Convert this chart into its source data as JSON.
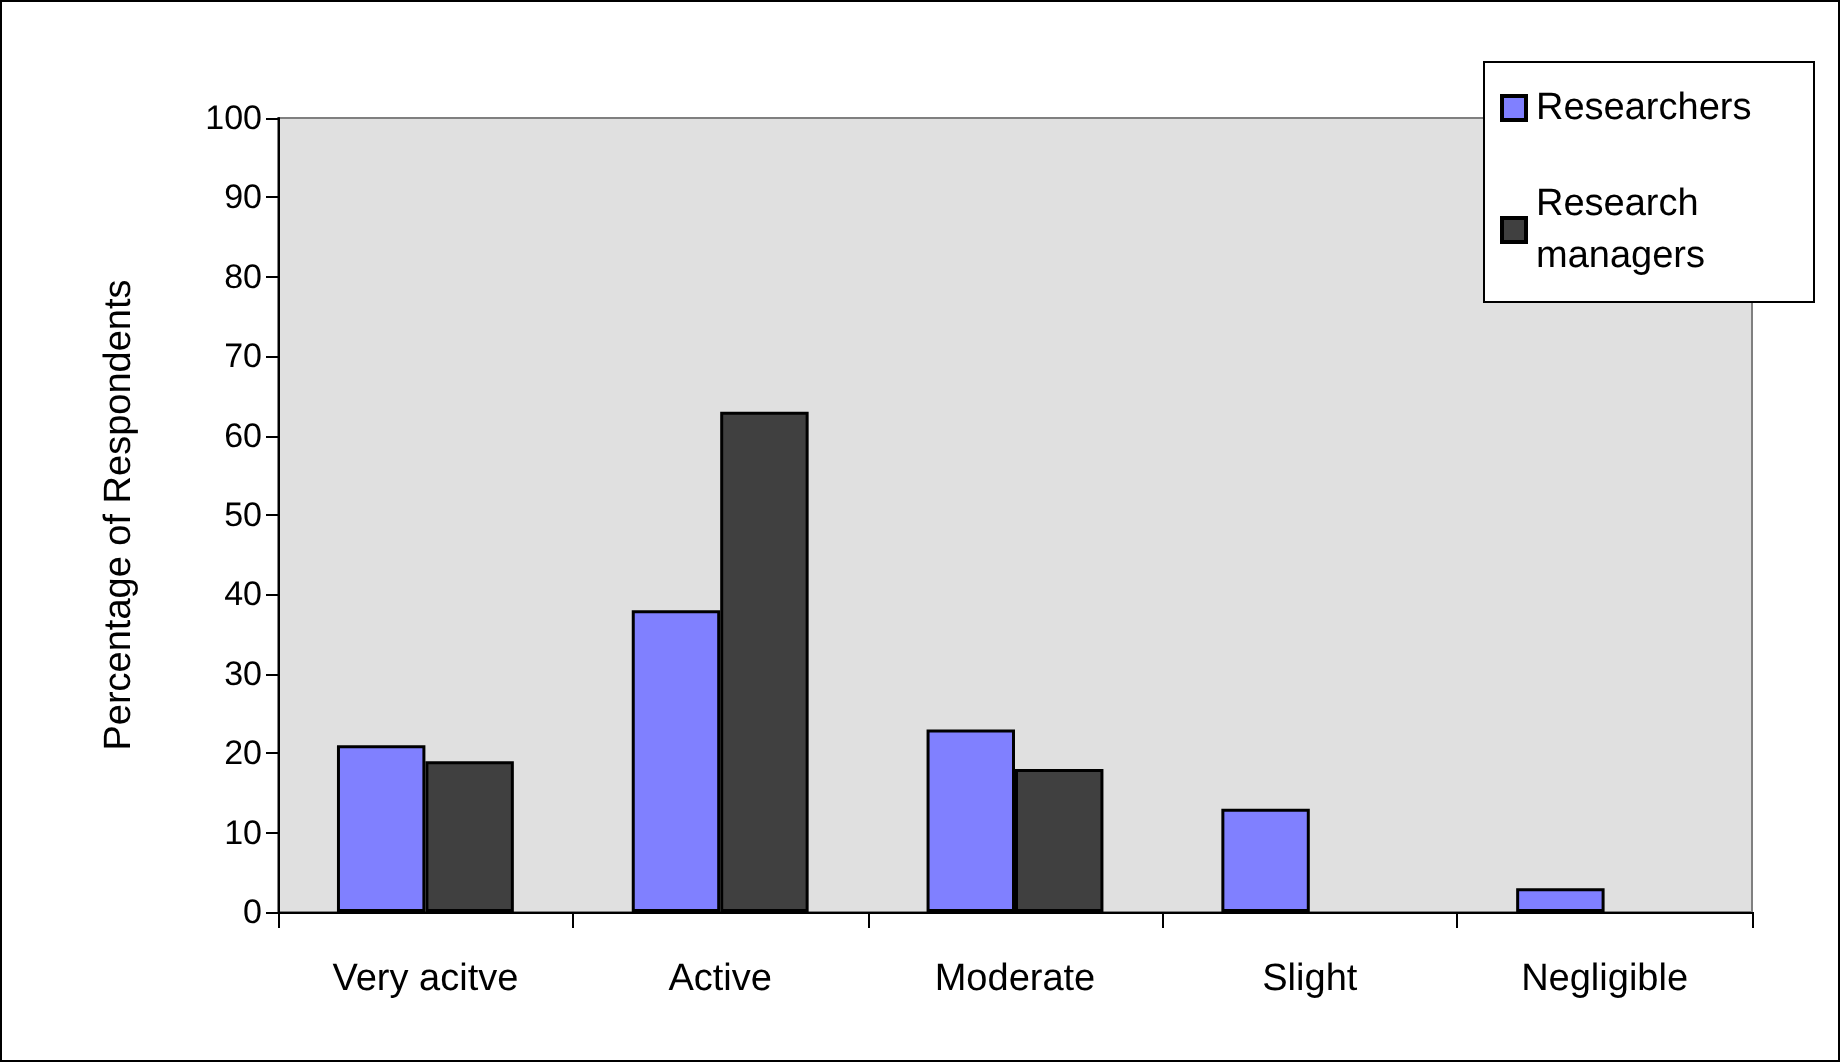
{
  "chart_data": {
    "type": "bar",
    "ylabel": "Percentage of Respondents",
    "categories": [
      "Very acitve",
      "Active",
      "Moderate",
      "Slight",
      "Negligible"
    ],
    "series": [
      {
        "name": "Researchers",
        "color": "#8080ff",
        "values": [
          21,
          38,
          23,
          13,
          3
        ]
      },
      {
        "name": "Research managers",
        "color": "#404040",
        "values": [
          19,
          63,
          18,
          null,
          null
        ]
      }
    ],
    "ylim": [
      0,
      100
    ],
    "yticks": [
      0,
      10,
      20,
      30,
      40,
      50,
      60,
      70,
      80,
      90,
      100
    ],
    "grid": false,
    "legend": "top right"
  }
}
